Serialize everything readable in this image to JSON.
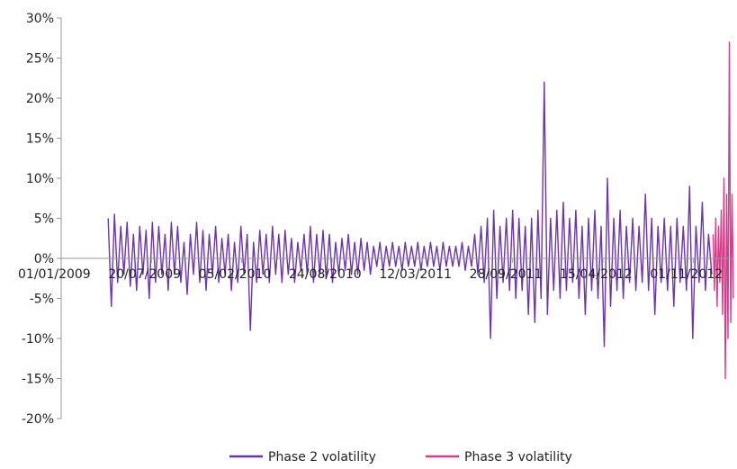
{
  "chart_data": {
    "type": "line",
    "title": "",
    "xlabel": "",
    "ylabel": "",
    "ylim": [
      -0.2,
      0.3
    ],
    "y_ticks": [
      {
        "value": 0.3,
        "label": "30%"
      },
      {
        "value": 0.25,
        "label": "25%"
      },
      {
        "value": 0.2,
        "label": "20%"
      },
      {
        "value": 0.15,
        "label": "15%"
      },
      {
        "value": 0.1,
        "label": "10%"
      },
      {
        "value": 0.05,
        "label": "5%"
      },
      {
        "value": 0.0,
        "label": "0%"
      },
      {
        "value": -0.05,
        "label": "-5%"
      },
      {
        "value": -0.1,
        "label": "-10%"
      },
      {
        "value": -0.15,
        "label": "-15%"
      },
      {
        "value": -0.2,
        "label": "-20%"
      }
    ],
    "x_range": [
      "2009-01-01",
      "2013-01-31"
    ],
    "x_ticks": [
      {
        "date": "2009-01-01",
        "label": "01/01/2009"
      },
      {
        "date": "2009-07-20",
        "label": "20/07/2009"
      },
      {
        "date": "2010-02-05",
        "label": "05/02/2010"
      },
      {
        "date": "2010-08-24",
        "label": "24/08/2010"
      },
      {
        "date": "2011-03-12",
        "label": "12/03/2011"
      },
      {
        "date": "2011-09-28",
        "label": "28/09/2011"
      },
      {
        "date": "2012-04-15",
        "label": "15/04/2012"
      },
      {
        "date": "2012-11-01",
        "label": "01/11/2012"
      }
    ],
    "series": [
      {
        "name": "Phase 2 volatility",
        "color": "#6a36a8",
        "points": [
          [
            "2009-04-15",
            0.05
          ],
          [
            "2009-04-22",
            -0.06
          ],
          [
            "2009-04-29",
            0.055
          ],
          [
            "2009-05-06",
            -0.03
          ],
          [
            "2009-05-13",
            0.04
          ],
          [
            "2009-05-20",
            -0.02
          ],
          [
            "2009-05-27",
            0.045
          ],
          [
            "2009-06-03",
            -0.035
          ],
          [
            "2009-06-10",
            0.03
          ],
          [
            "2009-06-17",
            -0.04
          ],
          [
            "2009-06-24",
            0.04
          ],
          [
            "2009-07-01",
            -0.02
          ],
          [
            "2009-07-08",
            0.035
          ],
          [
            "2009-07-15",
            -0.05
          ],
          [
            "2009-07-22",
            0.045
          ],
          [
            "2009-07-29",
            -0.03
          ],
          [
            "2009-08-05",
            0.04
          ],
          [
            "2009-08-12",
            -0.02
          ],
          [
            "2009-08-19",
            0.03
          ],
          [
            "2009-08-26",
            -0.04
          ],
          [
            "2009-09-02",
            0.045
          ],
          [
            "2009-09-09",
            -0.02
          ],
          [
            "2009-09-16",
            0.04
          ],
          [
            "2009-09-23",
            -0.03
          ],
          [
            "2009-09-30",
            0.02
          ],
          [
            "2009-10-07",
            -0.045
          ],
          [
            "2009-10-14",
            0.03
          ],
          [
            "2009-10-21",
            -0.02
          ],
          [
            "2009-10-28",
            0.045
          ],
          [
            "2009-11-04",
            -0.03
          ],
          [
            "2009-11-11",
            0.035
          ],
          [
            "2009-11-18",
            -0.04
          ],
          [
            "2009-11-25",
            0.03
          ],
          [
            "2009-12-02",
            -0.02
          ],
          [
            "2009-12-09",
            0.04
          ],
          [
            "2009-12-16",
            -0.03
          ],
          [
            "2009-12-23",
            0.025
          ],
          [
            "2009-12-30",
            -0.02
          ],
          [
            "2010-01-06",
            0.03
          ],
          [
            "2010-01-13",
            -0.04
          ],
          [
            "2010-01-20",
            0.02
          ],
          [
            "2010-01-27",
            -0.03
          ],
          [
            "2010-02-03",
            0.04
          ],
          [
            "2010-02-10",
            -0.02
          ],
          [
            "2010-02-17",
            0.03
          ],
          [
            "2010-02-24",
            -0.09
          ],
          [
            "2010-03-03",
            0.02
          ],
          [
            "2010-03-10",
            -0.03
          ],
          [
            "2010-03-17",
            0.035
          ],
          [
            "2010-03-24",
            -0.02
          ],
          [
            "2010-03-31",
            0.03
          ],
          [
            "2010-04-07",
            -0.03
          ],
          [
            "2010-04-14",
            0.04
          ],
          [
            "2010-04-21",
            -0.02
          ],
          [
            "2010-04-28",
            0.03
          ],
          [
            "2010-05-05",
            -0.03
          ],
          [
            "2010-05-12",
            0.035
          ],
          [
            "2010-05-19",
            -0.02
          ],
          [
            "2010-05-26",
            0.025
          ],
          [
            "2010-06-02",
            -0.03
          ],
          [
            "2010-06-09",
            0.02
          ],
          [
            "2010-06-16",
            -0.015
          ],
          [
            "2010-06-23",
            0.03
          ],
          [
            "2010-06-30",
            -0.02
          ],
          [
            "2010-07-07",
            0.04
          ],
          [
            "2010-07-14",
            -0.03
          ],
          [
            "2010-07-21",
            0.03
          ],
          [
            "2010-07-28",
            -0.02
          ],
          [
            "2010-08-04",
            0.035
          ],
          [
            "2010-08-11",
            -0.025
          ],
          [
            "2010-08-18",
            0.03
          ],
          [
            "2010-08-25",
            -0.03
          ],
          [
            "2010-09-01",
            0.02
          ],
          [
            "2010-09-08",
            -0.02
          ],
          [
            "2010-09-15",
            0.025
          ],
          [
            "2010-09-22",
            -0.015
          ],
          [
            "2010-09-29",
            0.03
          ],
          [
            "2010-10-06",
            -0.02
          ],
          [
            "2010-10-13",
            0.02
          ],
          [
            "2010-10-20",
            -0.02
          ],
          [
            "2010-10-27",
            0.025
          ],
          [
            "2010-11-03",
            -0.015
          ],
          [
            "2010-11-10",
            0.02
          ],
          [
            "2010-11-17",
            -0.02
          ],
          [
            "2010-11-24",
            0.015
          ],
          [
            "2010-12-01",
            -0.01
          ],
          [
            "2010-12-08",
            0.02
          ],
          [
            "2010-12-15",
            -0.015
          ],
          [
            "2010-12-22",
            0.015
          ],
          [
            "2010-12-29",
            -0.01
          ],
          [
            "2011-01-05",
            0.02
          ],
          [
            "2011-01-12",
            -0.01
          ],
          [
            "2011-01-19",
            0.015
          ],
          [
            "2011-01-26",
            -0.015
          ],
          [
            "2011-02-02",
            0.02
          ],
          [
            "2011-02-09",
            -0.01
          ],
          [
            "2011-02-16",
            0.015
          ],
          [
            "2011-02-23",
            -0.01
          ],
          [
            "2011-03-02",
            0.02
          ],
          [
            "2011-03-09",
            -0.015
          ],
          [
            "2011-03-16",
            0.015
          ],
          [
            "2011-03-23",
            -0.01
          ],
          [
            "2011-03-30",
            0.02
          ],
          [
            "2011-04-06",
            -0.01
          ],
          [
            "2011-04-13",
            0.015
          ],
          [
            "2011-04-20",
            -0.015
          ],
          [
            "2011-04-27",
            0.02
          ],
          [
            "2011-05-04",
            -0.01
          ],
          [
            "2011-05-11",
            0.015
          ],
          [
            "2011-05-18",
            -0.01
          ],
          [
            "2011-05-25",
            0.015
          ],
          [
            "2011-06-01",
            -0.01
          ],
          [
            "2011-06-08",
            0.02
          ],
          [
            "2011-06-15",
            -0.015
          ],
          [
            "2011-06-22",
            0.015
          ],
          [
            "2011-06-29",
            -0.01
          ],
          [
            "2011-07-06",
            0.03
          ],
          [
            "2011-07-13",
            -0.02
          ],
          [
            "2011-07-20",
            0.04
          ],
          [
            "2011-07-27",
            -0.03
          ],
          [
            "2011-08-03",
            0.05
          ],
          [
            "2011-08-10",
            -0.1
          ],
          [
            "2011-08-17",
            0.06
          ],
          [
            "2011-08-24",
            -0.05
          ],
          [
            "2011-08-31",
            0.04
          ],
          [
            "2011-09-07",
            -0.03
          ],
          [
            "2011-09-14",
            0.05
          ],
          [
            "2011-09-21",
            -0.04
          ],
          [
            "2011-09-28",
            0.06
          ],
          [
            "2011-10-05",
            -0.05
          ],
          [
            "2011-10-12",
            0.05
          ],
          [
            "2011-10-19",
            -0.04
          ],
          [
            "2011-10-26",
            0.04
          ],
          [
            "2011-11-02",
            -0.07
          ],
          [
            "2011-11-09",
            0.05
          ],
          [
            "2011-11-16",
            -0.08
          ],
          [
            "2011-11-23",
            0.06
          ],
          [
            "2011-11-30",
            -0.05
          ],
          [
            "2011-12-07",
            0.22
          ],
          [
            "2011-12-14",
            -0.07
          ],
          [
            "2011-12-21",
            0.05
          ],
          [
            "2011-12-28",
            -0.04
          ],
          [
            "2012-01-04",
            0.06
          ],
          [
            "2012-01-11",
            -0.05
          ],
          [
            "2012-01-18",
            0.07
          ],
          [
            "2012-01-25",
            -0.04
          ],
          [
            "2012-02-01",
            0.05
          ],
          [
            "2012-02-08",
            -0.03
          ],
          [
            "2012-02-15",
            0.06
          ],
          [
            "2012-02-22",
            -0.05
          ],
          [
            "2012-02-29",
            0.04
          ],
          [
            "2012-03-07",
            -0.07
          ],
          [
            "2012-03-14",
            0.05
          ],
          [
            "2012-03-21",
            -0.04
          ],
          [
            "2012-03-28",
            0.06
          ],
          [
            "2012-04-04",
            -0.05
          ],
          [
            "2012-04-11",
            0.04
          ],
          [
            "2012-04-18",
            -0.11
          ],
          [
            "2012-04-25",
            0.1
          ],
          [
            "2012-05-02",
            -0.06
          ],
          [
            "2012-05-09",
            0.05
          ],
          [
            "2012-05-16",
            -0.04
          ],
          [
            "2012-05-23",
            0.06
          ],
          [
            "2012-05-30",
            -0.05
          ],
          [
            "2012-06-06",
            0.04
          ],
          [
            "2012-06-13",
            -0.03
          ],
          [
            "2012-06-20",
            0.05
          ],
          [
            "2012-06-27",
            -0.04
          ],
          [
            "2012-07-04",
            0.04
          ],
          [
            "2012-07-11",
            -0.03
          ],
          [
            "2012-07-18",
            0.08
          ],
          [
            "2012-07-25",
            -0.04
          ],
          [
            "2012-08-01",
            0.05
          ],
          [
            "2012-08-08",
            -0.07
          ],
          [
            "2012-08-15",
            0.04
          ],
          [
            "2012-08-22",
            -0.03
          ],
          [
            "2012-08-29",
            0.05
          ],
          [
            "2012-09-05",
            -0.04
          ],
          [
            "2012-09-12",
            0.04
          ],
          [
            "2012-09-19",
            -0.06
          ],
          [
            "2012-09-26",
            0.05
          ],
          [
            "2012-10-03",
            -0.03
          ],
          [
            "2012-10-10",
            0.04
          ],
          [
            "2012-10-17",
            -0.04
          ],
          [
            "2012-10-24",
            0.09
          ],
          [
            "2012-10-31",
            -0.1
          ],
          [
            "2012-11-07",
            0.04
          ],
          [
            "2012-11-14",
            -0.03
          ],
          [
            "2012-11-21",
            0.07
          ],
          [
            "2012-11-28",
            -0.04
          ],
          [
            "2012-12-05",
            0.03
          ],
          [
            "2012-12-12",
            -0.02
          ]
        ]
      },
      {
        "name": "Phase 3 volatility",
        "color": "#d43c8c",
        "points": [
          [
            "2012-12-15",
            0.03
          ],
          [
            "2012-12-18",
            -0.04
          ],
          [
            "2012-12-21",
            0.05
          ],
          [
            "2012-12-24",
            -0.06
          ],
          [
            "2012-12-27",
            0.04
          ],
          [
            "2012-12-30",
            -0.03
          ],
          [
            "2013-01-02",
            0.06
          ],
          [
            "2013-01-05",
            -0.07
          ],
          [
            "2013-01-08",
            0.1
          ],
          [
            "2013-01-11",
            -0.15
          ],
          [
            "2013-01-14",
            0.08
          ],
          [
            "2013-01-17",
            -0.1
          ],
          [
            "2013-01-20",
            0.27
          ],
          [
            "2013-01-23",
            -0.08
          ],
          [
            "2013-01-26",
            0.08
          ],
          [
            "2013-01-29",
            -0.05
          ]
        ]
      }
    ],
    "legend_position": "bottom",
    "grid": false
  }
}
